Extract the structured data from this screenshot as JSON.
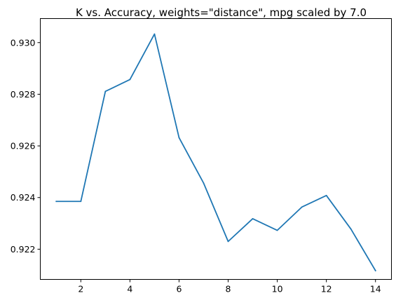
{
  "chart_data": {
    "type": "line",
    "title": "K vs. Accuracy, weights=\"distance\", mpg scaled by 7.0",
    "xlabel": "",
    "ylabel": "",
    "x": [
      1,
      2,
      3,
      4,
      5,
      6,
      7,
      8,
      9,
      10,
      11,
      12,
      13,
      14
    ],
    "series": [
      {
        "values": [
          0.92385,
          0.92385,
          0.92811,
          0.92857,
          0.93033,
          0.92632,
          0.92456,
          0.9223,
          0.92318,
          0.92273,
          0.92363,
          0.92408,
          0.92278,
          0.92117
        ],
        "color": "#1f77b4"
      }
    ],
    "xlim": [
      0.35,
      14.65
    ],
    "ylim": [
      0.92083,
      0.93093
    ],
    "xticks": [
      2,
      4,
      6,
      8,
      10,
      12,
      14
    ],
    "xtick_labels": [
      "2",
      "4",
      "6",
      "8",
      "10",
      "12",
      "14"
    ],
    "yticks": [
      0.922,
      0.924,
      0.926,
      0.928,
      0.93
    ],
    "ytick_labels": [
      "0.922",
      "0.924",
      "0.926",
      "0.928",
      "0.930"
    ],
    "grid": false,
    "legend": "none"
  }
}
